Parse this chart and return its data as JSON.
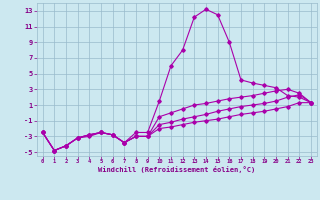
{
  "xlabel": "Windchill (Refroidissement éolien,°C)",
  "background_color": "#cce8f0",
  "grid_color": "#99bbcc",
  "line_color": "#aa00aa",
  "xlim": [
    -0.5,
    23.5
  ],
  "ylim": [
    -5.5,
    14.0
  ],
  "xticks": [
    0,
    1,
    2,
    3,
    4,
    5,
    6,
    7,
    8,
    9,
    10,
    11,
    12,
    13,
    14,
    15,
    16,
    17,
    18,
    19,
    20,
    21,
    22,
    23
  ],
  "yticks": [
    -5,
    -3,
    -1,
    1,
    3,
    5,
    7,
    9,
    11,
    13
  ],
  "lines": [
    {
      "x": [
        0,
        1,
        2,
        3,
        4,
        5,
        6,
        7,
        8,
        9,
        10,
        11,
        12,
        13,
        14,
        15,
        16,
        17,
        18,
        19,
        20,
        21,
        22,
        23
      ],
      "y": [
        -2.5,
        -4.8,
        -4.2,
        -3.2,
        -2.8,
        -2.5,
        -2.8,
        -3.8,
        -2.5,
        -2.5,
        1.5,
        6.0,
        8.0,
        12.2,
        13.2,
        12.5,
        9.0,
        4.2,
        3.8,
        3.5,
        3.2,
        2.2,
        2.0,
        1.3
      ]
    },
    {
      "x": [
        0,
        1,
        2,
        3,
        4,
        5,
        6,
        7,
        8,
        9,
        10,
        11,
        12,
        13,
        14,
        15,
        16,
        17,
        18,
        19,
        20,
        21,
        22,
        23
      ],
      "y": [
        -2.5,
        -4.8,
        -4.2,
        -3.2,
        -2.8,
        -2.5,
        -2.8,
        -3.8,
        -3.0,
        -3.0,
        -0.5,
        0.0,
        0.5,
        1.0,
        1.2,
        1.5,
        1.8,
        2.0,
        2.2,
        2.5,
        2.8,
        3.0,
        2.5,
        1.3
      ]
    },
    {
      "x": [
        0,
        1,
        2,
        3,
        4,
        5,
        6,
        7,
        8,
        9,
        10,
        11,
        12,
        13,
        14,
        15,
        16,
        17,
        18,
        19,
        20,
        21,
        22,
        23
      ],
      "y": [
        -2.5,
        -4.8,
        -4.2,
        -3.2,
        -3.0,
        -2.5,
        -2.8,
        -3.8,
        -3.0,
        -3.0,
        -1.5,
        -1.2,
        -0.8,
        -0.5,
        -0.2,
        0.2,
        0.5,
        0.8,
        1.0,
        1.2,
        1.5,
        2.0,
        2.3,
        1.3
      ]
    },
    {
      "x": [
        0,
        1,
        2,
        3,
        4,
        5,
        6,
        7,
        8,
        9,
        10,
        11,
        12,
        13,
        14,
        15,
        16,
        17,
        18,
        19,
        20,
        21,
        22,
        23
      ],
      "y": [
        -2.5,
        -4.8,
        -4.2,
        -3.2,
        -2.8,
        -2.5,
        -2.8,
        -3.8,
        -3.0,
        -3.0,
        -2.0,
        -1.8,
        -1.5,
        -1.2,
        -1.0,
        -0.8,
        -0.5,
        -0.2,
        0.0,
        0.2,
        0.5,
        0.8,
        1.3,
        1.3
      ]
    }
  ]
}
